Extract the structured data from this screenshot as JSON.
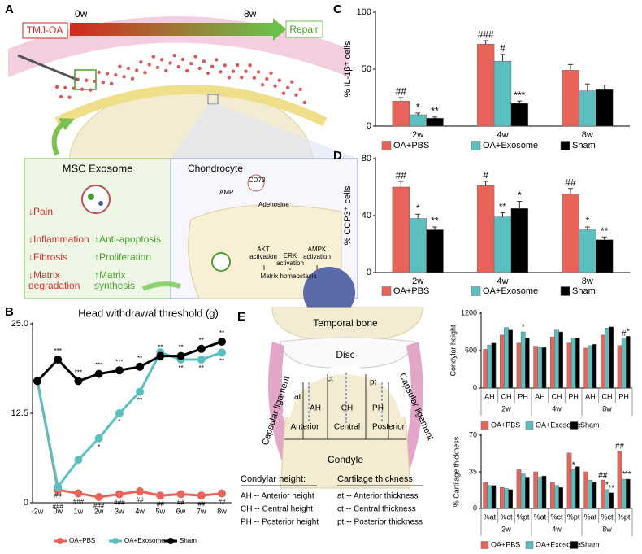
{
  "panel_a": {
    "label": "A",
    "timeline": {
      "start": "TMJ-OA",
      "start_time": "0w",
      "end_time": "8w",
      "end": "Repair"
    },
    "exosome_box": {
      "title": "MSC Exosome",
      "decreases": [
        "↓Pain",
        "↓Inflammation",
        "↓Fibrosis",
        "↓Matrix degradation"
      ],
      "increases": [
        "↑Anti-apoptosis",
        "↑Proliferation",
        "↑Matrix synthesis"
      ]
    },
    "chondrocyte_box": {
      "title": "Chondrocyte",
      "labels": [
        "CD73",
        "AMP",
        "Adenosine"
      ],
      "pathways": [
        "AKT activation",
        "ERK activation",
        "AMPK activation"
      ],
      "outcome": "Matrix homeostasis"
    }
  },
  "panel_e": {
    "label": "E",
    "diagram": {
      "top": "Temporal bone",
      "disc": "Disc",
      "ligaments": [
        "Capsular ligament",
        "Capsular ligament"
      ],
      "thickness": [
        "at",
        "ct",
        "pt"
      ],
      "heights": [
        "AH",
        "CH",
        "PH"
      ],
      "regions": [
        "Anterior",
        "Central",
        "Posterior"
      ],
      "bottom": "Condyle"
    },
    "key": {
      "height_title": "Condylar height:",
      "height_items": [
        "AH -- Anterior height",
        "CH -- Central height",
        "PH -- Posterior height"
      ],
      "thickness_title": "Cartilage thickness:",
      "thickness_items": [
        "at -- Anterior thickness",
        "ct -- Central thickness",
        "pt -- Posterior thickness"
      ]
    }
  },
  "chart_data": [
    {
      "type": "line",
      "label": "B",
      "title": "Head withdrawal threshold (g)",
      "categories": [
        "-2w",
        "0w",
        "1w",
        "2w",
        "3w",
        "4w",
        "5w",
        "6w",
        "7w",
        "8w"
      ],
      "ylim": [
        0,
        25
      ],
      "yticks": [
        0,
        12.5,
        {
          "value": 25,
          "label": "25.0"
        }
      ],
      "series": [
        {
          "name": "OA+PBS",
          "color": "#e8645a",
          "values": [
            17,
            1.8,
            1.3,
            0.8,
            1.2,
            1.6,
            1,
            1.2,
            1,
            1.3
          ],
          "annotations": [
            null,
            "###",
            "###",
            "###",
            "###",
            "##",
            "##",
            "##",
            "##",
            "##"
          ]
        },
        {
          "name": "OA+Exosome",
          "color": "#5bbfbf",
          "values": [
            17,
            2.2,
            6,
            9,
            12.5,
            15.5,
            21,
            20,
            20,
            21
          ],
          "annotations": [
            null,
            "##",
            null,
            "*",
            "*",
            "**",
            "**",
            "**",
            "**",
            "**"
          ]
        },
        {
          "name": "Sham",
          "color": "#000000",
          "values": [
            17,
            20,
            17,
            18,
            18.5,
            19,
            20.5,
            20.5,
            21.5,
            22.5
          ],
          "annotations": [
            null,
            "***",
            "***",
            "***",
            "***",
            "**",
            "**",
            "**",
            "**",
            "**"
          ]
        }
      ]
    },
    {
      "type": "bar",
      "label": "C",
      "y_label": "% IL-1β⁺ cells",
      "categories": [
        "2w",
        "4w",
        "8w"
      ],
      "ylim": [
        0,
        100
      ],
      "yticks": [
        0,
        50,
        100
      ],
      "series": [
        {
          "name": "OA+PBS",
          "color": "#e8645a",
          "values": [
            22,
            72,
            49
          ],
          "errors": [
            3,
            3,
            5
          ],
          "annotations": [
            "##",
            "###",
            null
          ]
        },
        {
          "name": "OA+Exosome",
          "color": "#5bbfbf",
          "values": [
            10,
            57,
            31
          ],
          "errors": [
            1.5,
            6,
            6
          ],
          "annotations": [
            "*",
            "#",
            null
          ]
        },
        {
          "name": "Sham",
          "color": "#000000",
          "values": [
            7,
            20,
            32
          ],
          "errors": [
            1,
            2,
            4
          ],
          "annotations": [
            "**",
            "***",
            null
          ]
        }
      ]
    },
    {
      "type": "bar",
      "label": "D",
      "y_label": "% CCP3⁺ cells",
      "categories": [
        "2w",
        "4w",
        "8w"
      ],
      "ylim": [
        0,
        80
      ],
      "yticks": [
        0,
        40,
        80
      ],
      "series": [
        {
          "name": "OA+PBS",
          "color": "#e8645a",
          "values": [
            60,
            61,
            55
          ],
          "errors": [
            4,
            3,
            4
          ],
          "annotations": [
            "##",
            "#",
            "##"
          ]
        },
        {
          "name": "OA+Exosome",
          "color": "#5bbfbf",
          "values": [
            38,
            39,
            30
          ],
          "errors": [
            3,
            3,
            2
          ],
          "annotations": [
            "*",
            "**",
            "*"
          ]
        },
        {
          "name": "Sham",
          "color": "#000000",
          "values": [
            30,
            45,
            23
          ],
          "errors": [
            2,
            5,
            2
          ],
          "annotations": [
            "**",
            "*",
            "**"
          ]
        }
      ]
    },
    {
      "type": "bar",
      "y_label": "Condylar height",
      "categories": [
        "AH",
        "CH",
        "PH",
        "AH",
        "CH",
        "PH",
        "AH",
        "CH",
        "PH"
      ],
      "groups": [
        "2w",
        "4w",
        "8w"
      ],
      "ylim": [
        0,
        1200
      ],
      "yticks": [
        0,
        600,
        1200
      ],
      "series": [
        {
          "name": "OA+PBS",
          "color": "#e8645a",
          "values": [
            620,
            850,
            720,
            670,
            820,
            720,
            640,
            850,
            680
          ],
          "annotations": [
            null,
            null,
            null,
            null,
            null,
            null,
            null,
            null,
            null
          ]
        },
        {
          "name": "OA+Exosome",
          "color": "#5bbfbf",
          "values": [
            690,
            970,
            900,
            660,
            930,
            800,
            680,
            960,
            800
          ],
          "annotations": [
            null,
            null,
            "*",
            null,
            null,
            null,
            null,
            null,
            "#"
          ]
        },
        {
          "name": "Sham",
          "color": "#000000",
          "values": [
            720,
            930,
            800,
            650,
            900,
            800,
            700,
            980,
            830
          ],
          "annotations": [
            null,
            null,
            null,
            null,
            null,
            null,
            null,
            null,
            "*"
          ]
        }
      ]
    },
    {
      "type": "bar",
      "y_label": "% Cartilage thickness",
      "categories": [
        "%at",
        "%ct",
        "%pt",
        "%at",
        "%ct",
        "%pt",
        "%at",
        "%ct",
        "%pt"
      ],
      "groups": [
        "2w",
        "4w",
        "8w"
      ],
      "ylim": [
        0,
        70
      ],
      "yticks": [
        0,
        35,
        70
      ],
      "series": [
        {
          "name": "OA+PBS",
          "color": "#e8645a",
          "values": [
            25,
            20,
            37,
            35,
            25,
            53,
            35,
            27,
            55
          ],
          "annotations": [
            null,
            null,
            null,
            null,
            null,
            null,
            null,
            "##",
            "##"
          ]
        },
        {
          "name": "OA+Exosome",
          "color": "#5bbfbf",
          "values": [
            22,
            19,
            33,
            30,
            22,
            37,
            27,
            18,
            28
          ],
          "annotations": [
            null,
            null,
            null,
            null,
            null,
            "*",
            null,
            "*",
            "*"
          ]
        },
        {
          "name": "Sham",
          "color": "#000000",
          "values": [
            22,
            18,
            30,
            31,
            20,
            40,
            25,
            15,
            28
          ],
          "annotations": [
            null,
            null,
            null,
            null,
            null,
            null,
            null,
            "**",
            "**"
          ]
        }
      ]
    }
  ]
}
